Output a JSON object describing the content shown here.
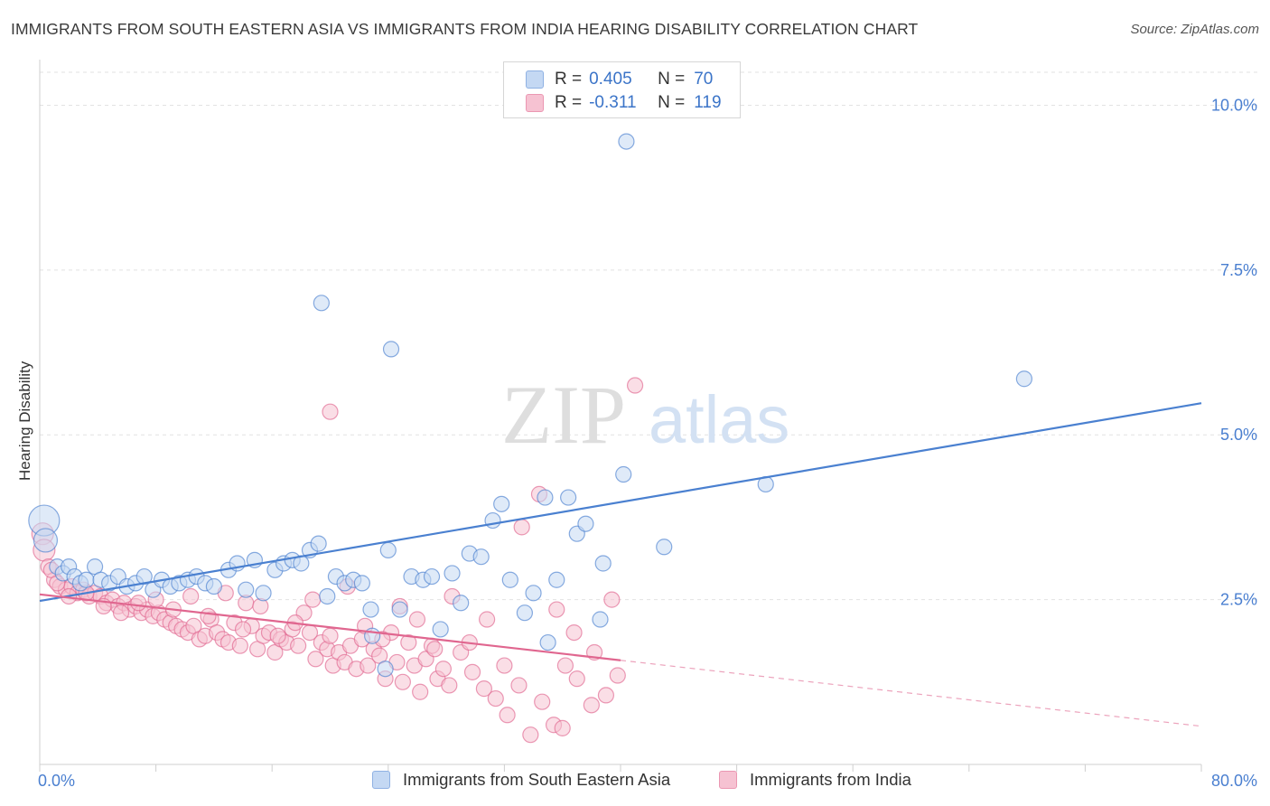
{
  "title": "IMMIGRANTS FROM SOUTH EASTERN ASIA VS IMMIGRANTS FROM INDIA HEARING DISABILITY CORRELATION CHART",
  "source": "Source: ZipAtlas.com",
  "watermark": {
    "zip": "ZIP",
    "atlas": "atlas"
  },
  "legend": {
    "r_label": "R =",
    "n_label": "N =",
    "rows": [
      {
        "r": "0.405",
        "n": "70"
      },
      {
        "r": "-0.311",
        "n": "119"
      }
    ]
  },
  "chart_data": {
    "type": "scatter",
    "xlabel": "",
    "ylabel": "Hearing Disability",
    "xlim": [
      0,
      80
    ],
    "ylim": [
      0,
      10.5
    ],
    "x_tick_labels": [
      "0.0%",
      "80.0%"
    ],
    "y_ticks": [
      2.5,
      5.0,
      7.5,
      10.0
    ],
    "y_tick_labels": [
      "2.5%",
      "5.0%",
      "7.5%",
      "10.0%"
    ],
    "grid": true,
    "legend_position": "top-center",
    "series": [
      {
        "name": "Immigrants from South Eastern Asia",
        "color": "#4a80d0",
        "fill": "#c4d8f3",
        "trend": {
          "x": [
            0,
            80
          ],
          "y": [
            2.48,
            5.48
          ],
          "dashed_from": null
        },
        "points": [
          [
            0.3,
            3.7
          ],
          [
            0.4,
            3.4
          ],
          [
            1.2,
            3.0
          ],
          [
            1.6,
            2.9
          ],
          [
            2.0,
            3.0
          ],
          [
            2.4,
            2.85
          ],
          [
            2.8,
            2.75
          ],
          [
            3.2,
            2.8
          ],
          [
            3.8,
            3.0
          ],
          [
            4.2,
            2.8
          ],
          [
            4.8,
            2.75
          ],
          [
            5.4,
            2.85
          ],
          [
            6.0,
            2.7
          ],
          [
            6.6,
            2.75
          ],
          [
            7.2,
            2.85
          ],
          [
            7.8,
            2.65
          ],
          [
            8.4,
            2.8
          ],
          [
            9.0,
            2.7
          ],
          [
            9.6,
            2.75
          ],
          [
            10.2,
            2.8
          ],
          [
            10.8,
            2.85
          ],
          [
            11.4,
            2.75
          ],
          [
            12.0,
            2.7
          ],
          [
            13.0,
            2.95
          ],
          [
            13.6,
            3.05
          ],
          [
            14.2,
            2.65
          ],
          [
            14.8,
            3.1
          ],
          [
            15.4,
            2.6
          ],
          [
            16.2,
            2.95
          ],
          [
            16.8,
            3.05
          ],
          [
            17.4,
            3.1
          ],
          [
            18.0,
            3.05
          ],
          [
            18.6,
            3.25
          ],
          [
            19.2,
            3.35
          ],
          [
            19.8,
            2.55
          ],
          [
            20.4,
            2.85
          ],
          [
            21.0,
            2.75
          ],
          [
            21.6,
            2.8
          ],
          [
            22.2,
            2.75
          ],
          [
            22.8,
            2.35
          ],
          [
            22.9,
            1.95
          ],
          [
            23.8,
            1.45
          ],
          [
            24.0,
            3.25
          ],
          [
            24.8,
            2.35
          ],
          [
            25.6,
            2.85
          ],
          [
            26.4,
            2.8
          ],
          [
            27.0,
            2.85
          ],
          [
            27.6,
            2.05
          ],
          [
            28.4,
            2.9
          ],
          [
            29.0,
            2.45
          ],
          [
            29.6,
            3.2
          ],
          [
            30.4,
            3.15
          ],
          [
            31.2,
            3.7
          ],
          [
            31.8,
            3.95
          ],
          [
            32.4,
            2.8
          ],
          [
            33.4,
            2.3
          ],
          [
            34.0,
            2.6
          ],
          [
            34.8,
            4.05
          ],
          [
            35.0,
            1.85
          ],
          [
            35.6,
            2.8
          ],
          [
            36.4,
            4.05
          ],
          [
            37.0,
            3.5
          ],
          [
            37.6,
            3.65
          ],
          [
            38.6,
            2.2
          ],
          [
            38.8,
            3.05
          ],
          [
            40.2,
            4.4
          ],
          [
            40.4,
            9.45
          ],
          [
            43.0,
            3.3
          ],
          [
            50.0,
            4.25
          ],
          [
            67.8,
            5.85
          ],
          [
            19.4,
            7.0
          ],
          [
            24.2,
            6.3
          ]
        ]
      },
      {
        "name": "Immigrants from India",
        "color": "#e0668f",
        "fill": "#f6c2d2",
        "trend": {
          "x": [
            0,
            80
          ],
          "y": [
            2.58,
            0.58
          ],
          "dashed_from": 40
        },
        "points": [
          [
            0.2,
            3.5
          ],
          [
            0.3,
            3.25
          ],
          [
            0.6,
            3.0
          ],
          [
            1.0,
            2.8
          ],
          [
            1.4,
            2.7
          ],
          [
            1.8,
            2.65
          ],
          [
            2.2,
            2.7
          ],
          [
            2.6,
            2.6
          ],
          [
            3.0,
            2.65
          ],
          [
            3.4,
            2.55
          ],
          [
            3.8,
            2.6
          ],
          [
            4.2,
            2.55
          ],
          [
            4.6,
            2.45
          ],
          [
            5.0,
            2.5
          ],
          [
            5.4,
            2.4
          ],
          [
            5.8,
            2.45
          ],
          [
            6.2,
            2.35
          ],
          [
            6.6,
            2.4
          ],
          [
            7.0,
            2.3
          ],
          [
            7.4,
            2.35
          ],
          [
            7.8,
            2.25
          ],
          [
            8.2,
            2.3
          ],
          [
            8.6,
            2.2
          ],
          [
            9.0,
            2.15
          ],
          [
            9.4,
            2.1
          ],
          [
            9.8,
            2.05
          ],
          [
            10.2,
            2.0
          ],
          [
            10.6,
            2.1
          ],
          [
            11.0,
            1.9
          ],
          [
            11.4,
            1.95
          ],
          [
            11.8,
            2.2
          ],
          [
            12.2,
            2.0
          ],
          [
            12.6,
            1.9
          ],
          [
            13.0,
            1.85
          ],
          [
            13.4,
            2.15
          ],
          [
            13.8,
            1.8
          ],
          [
            14.2,
            2.45
          ],
          [
            14.6,
            2.1
          ],
          [
            15.0,
            1.75
          ],
          [
            15.4,
            1.95
          ],
          [
            15.8,
            2.0
          ],
          [
            16.2,
            1.7
          ],
          [
            16.6,
            1.9
          ],
          [
            17.0,
            1.85
          ],
          [
            17.4,
            2.05
          ],
          [
            17.8,
            1.8
          ],
          [
            18.2,
            2.3
          ],
          [
            18.6,
            2.0
          ],
          [
            19.0,
            1.6
          ],
          [
            19.4,
            1.85
          ],
          [
            19.8,
            1.75
          ],
          [
            20.2,
            1.5
          ],
          [
            20.6,
            1.7
          ],
          [
            21.0,
            1.55
          ],
          [
            21.4,
            1.8
          ],
          [
            21.8,
            1.45
          ],
          [
            22.2,
            1.9
          ],
          [
            22.6,
            1.5
          ],
          [
            23.0,
            1.75
          ],
          [
            23.4,
            1.65
          ],
          [
            23.8,
            1.3
          ],
          [
            24.2,
            2.0
          ],
          [
            24.6,
            1.55
          ],
          [
            25.0,
            1.25
          ],
          [
            25.4,
            1.85
          ],
          [
            25.8,
            1.5
          ],
          [
            26.2,
            1.1
          ],
          [
            26.6,
            1.6
          ],
          [
            27.0,
            1.8
          ],
          [
            27.4,
            1.3
          ],
          [
            27.8,
            1.45
          ],
          [
            28.2,
            1.2
          ],
          [
            29.0,
            1.7
          ],
          [
            29.8,
            1.4
          ],
          [
            30.6,
            1.15
          ],
          [
            31.4,
            1.0
          ],
          [
            32.2,
            0.75
          ],
          [
            33.0,
            1.2
          ],
          [
            33.8,
            0.45
          ],
          [
            34.6,
            0.95
          ],
          [
            35.4,
            0.6
          ],
          [
            36.2,
            1.5
          ],
          [
            37.0,
            1.3
          ],
          [
            38.0,
            0.9
          ],
          [
            39.0,
            1.05
          ],
          [
            0.8,
            2.95
          ],
          [
            1.2,
            2.75
          ],
          [
            2.0,
            2.55
          ],
          [
            3.2,
            2.6
          ],
          [
            4.4,
            2.4
          ],
          [
            5.6,
            2.3
          ],
          [
            6.8,
            2.45
          ],
          [
            8.0,
            2.5
          ],
          [
            9.2,
            2.35
          ],
          [
            10.4,
            2.55
          ],
          [
            11.6,
            2.25
          ],
          [
            12.8,
            2.6
          ],
          [
            14.0,
            2.05
          ],
          [
            15.2,
            2.4
          ],
          [
            16.4,
            1.95
          ],
          [
            17.6,
            2.15
          ],
          [
            18.8,
            2.5
          ],
          [
            20.0,
            1.95
          ],
          [
            21.2,
            2.7
          ],
          [
            22.4,
            2.1
          ],
          [
            23.6,
            1.9
          ],
          [
            24.8,
            2.4
          ],
          [
            26.0,
            2.2
          ],
          [
            27.2,
            1.75
          ],
          [
            28.4,
            2.55
          ],
          [
            29.6,
            1.85
          ],
          [
            30.8,
            2.2
          ],
          [
            32.0,
            1.5
          ],
          [
            33.2,
            3.6
          ],
          [
            34.4,
            4.1
          ],
          [
            35.6,
            2.35
          ],
          [
            36.8,
            2.0
          ],
          [
            38.2,
            1.7
          ],
          [
            39.4,
            2.5
          ],
          [
            36.0,
            0.55
          ],
          [
            39.8,
            1.35
          ],
          [
            41.0,
            5.75
          ],
          [
            20.0,
            5.35
          ]
        ]
      }
    ]
  }
}
